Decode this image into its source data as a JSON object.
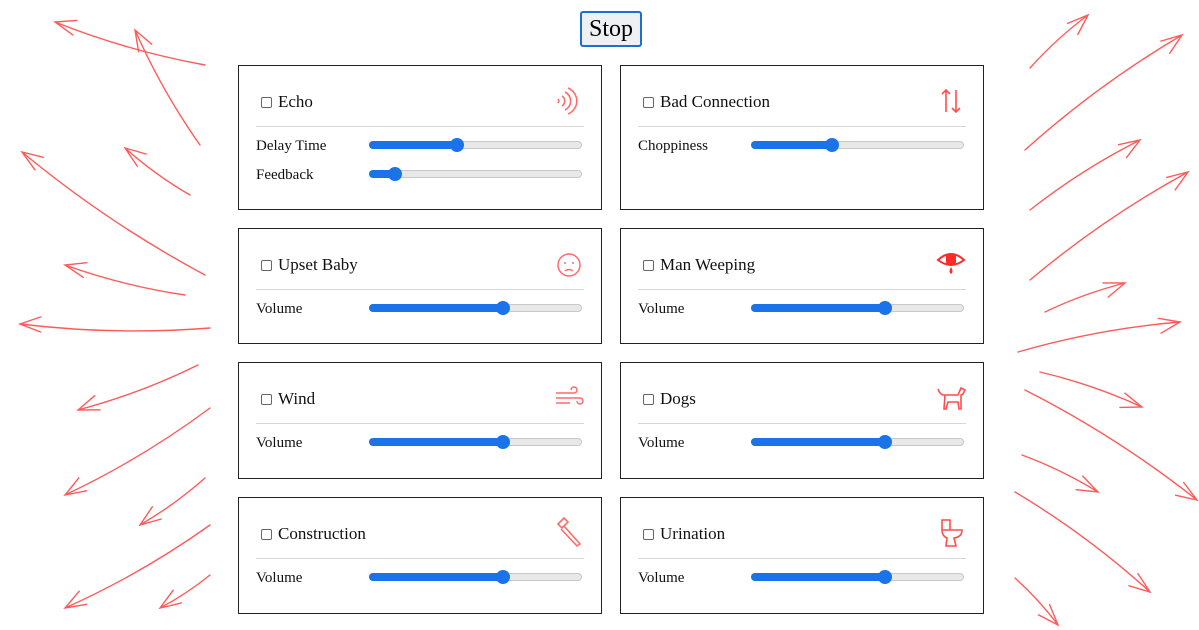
{
  "stop_label": "Stop",
  "accent_color": "#1a73e8",
  "icon_color": "#ff4d4d",
  "cards": [
    {
      "title": "Echo",
      "icon": "echo-waves-icon",
      "checked": false,
      "controls": [
        {
          "label": "Delay Time",
          "value": 0.41
        },
        {
          "label": "Feedback",
          "value": 0.12
        }
      ]
    },
    {
      "title": "Bad Connection",
      "icon": "up-down-arrows-icon",
      "checked": false,
      "controls": [
        {
          "label": "Choppiness",
          "value": 0.38
        }
      ]
    },
    {
      "title": "Upset Baby",
      "icon": "baby-face-icon",
      "checked": false,
      "controls": [
        {
          "label": "Volume",
          "value": 0.63
        }
      ]
    },
    {
      "title": "Man Weeping",
      "icon": "weeping-eye-icon",
      "checked": false,
      "controls": [
        {
          "label": "Volume",
          "value": 0.63
        }
      ]
    },
    {
      "title": "Wind",
      "icon": "wind-icon",
      "checked": false,
      "controls": [
        {
          "label": "Volume",
          "value": 0.63
        }
      ]
    },
    {
      "title": "Dogs",
      "icon": "dog-icon",
      "checked": false,
      "controls": [
        {
          "label": "Volume",
          "value": 0.63
        }
      ]
    },
    {
      "title": "Construction",
      "icon": "hammer-icon",
      "checked": false,
      "controls": [
        {
          "label": "Volume",
          "value": 0.63
        }
      ]
    },
    {
      "title": "Urination",
      "icon": "toilet-icon",
      "checked": false,
      "controls": [
        {
          "label": "Volume",
          "value": 0.63
        }
      ]
    }
  ]
}
